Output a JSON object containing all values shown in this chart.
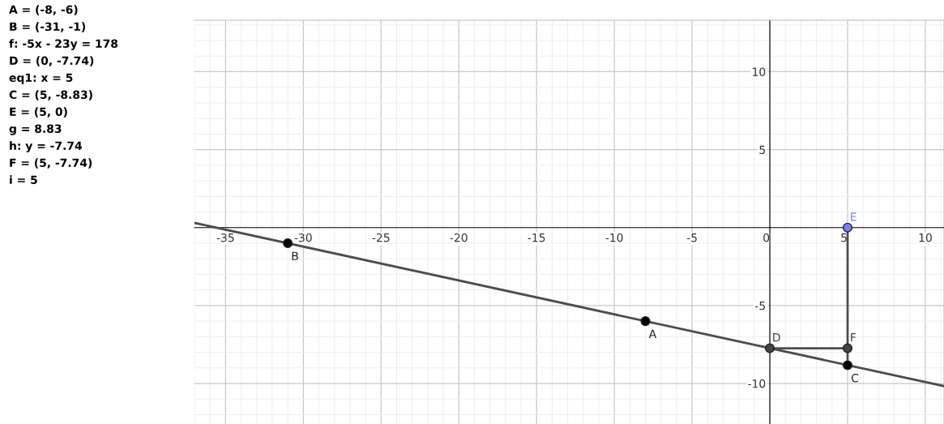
{
  "chart_data": {
    "type": "scatter",
    "annotations": [
      "A = (-8, -6)",
      "B = (-31, -1)",
      "f: -5x - 23y = 178",
      "D = (0, -7.74)",
      "eq1: x = 5",
      "C = (5, -8.83)",
      "E = (5, 0)",
      "g = 8.83",
      "h: y = -7.74",
      "F = (5, -7.74)",
      "i = 5"
    ],
    "series": [
      {
        "type": "line",
        "marker": "none",
        "color": "#4d4d4d",
        "x": [
          -37,
          11.2
        ],
        "values": [
          0.3,
          -10.17
        ]
      },
      {
        "type": "line",
        "marker": "none",
        "color": "#4d4d4d",
        "x": [
          5,
          5
        ],
        "values": [
          0,
          -8.83
        ]
      },
      {
        "type": "line",
        "marker": "none",
        "color": "#4d4d4d",
        "x": [
          0,
          5
        ],
        "values": [
          -7.74,
          -7.74
        ]
      },
      {
        "name": "A",
        "color": "#000000",
        "x": [
          -8
        ],
        "values": [
          -6
        ]
      },
      {
        "name": "B",
        "color": "#000000",
        "x": [
          -31
        ],
        "values": [
          -1
        ]
      },
      {
        "name": "D",
        "color": "#444444",
        "x": [
          0
        ],
        "values": [
          -7.74
        ]
      },
      {
        "name": "C",
        "color": "#000000",
        "x": [
          5
        ],
        "values": [
          -8.83
        ]
      },
      {
        "name": "F",
        "color": "#444444",
        "x": [
          5
        ],
        "values": [
          -7.74
        ]
      },
      {
        "name": "E",
        "color": "#7d7dff",
        "x": [
          5
        ],
        "values": [
          0
        ]
      }
    ],
    "xlim": [
      -37,
      11.2
    ],
    "ylim": [
      -12.6,
      13.3
    ],
    "xticks": [
      -35,
      -30,
      -25,
      -20,
      -15,
      -10,
      -5,
      0,
      5,
      10
    ],
    "yticks": [
      -10,
      -5,
      5,
      10
    ],
    "grid": true,
    "marker": "circle",
    "line_style": "solid"
  }
}
